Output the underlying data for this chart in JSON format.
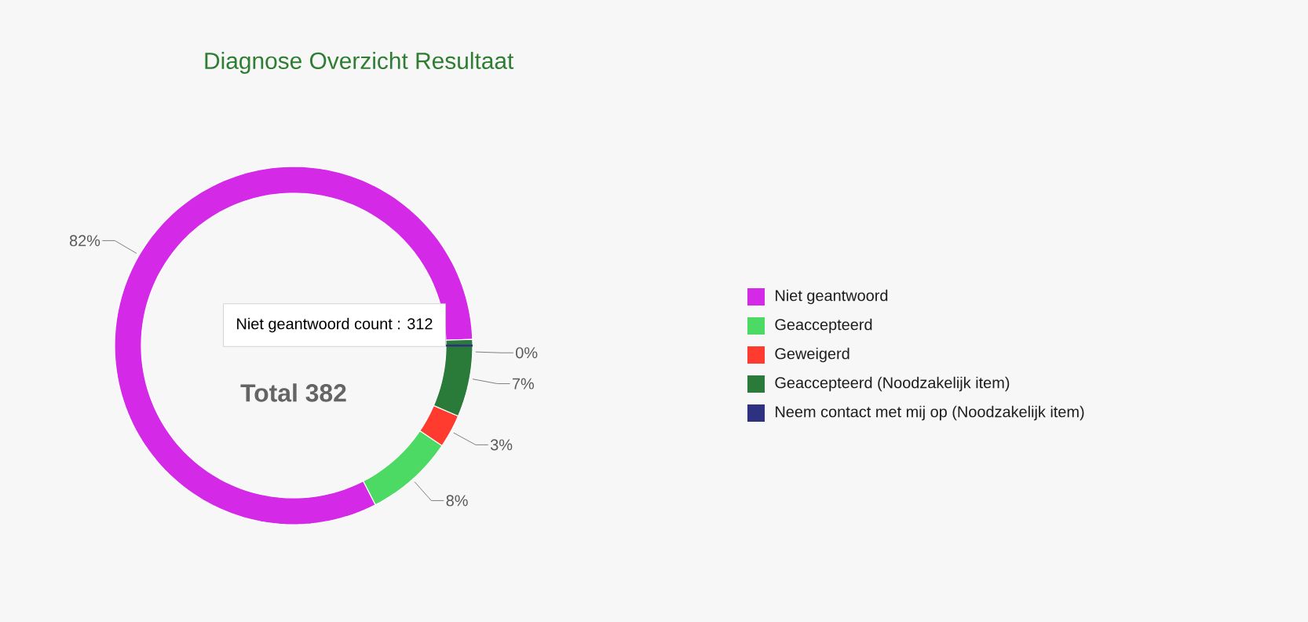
{
  "chart_data": {
    "type": "donut",
    "title": "Diagnose Overzicht Resultaat",
    "categories": [
      "Niet geantwoord",
      "Geaccepteerd",
      "Geweigerd",
      "Geaccepteerd (Noodzakelijk item)",
      "Neem contact met mij op (Noodzakelijk item)"
    ],
    "values": [
      82,
      8,
      3,
      7,
      0
    ],
    "value_labels": [
      "82%",
      "8%",
      "3%",
      "7%",
      "0%"
    ],
    "colors": [
      "#d42ae8",
      "#4cd964",
      "#ff3b30",
      "#2a7a3a",
      "#2e3180"
    ],
    "annotations": [
      "Total 382",
      "Niet geantwoord count : 312"
    ],
    "legend": "right"
  }
}
